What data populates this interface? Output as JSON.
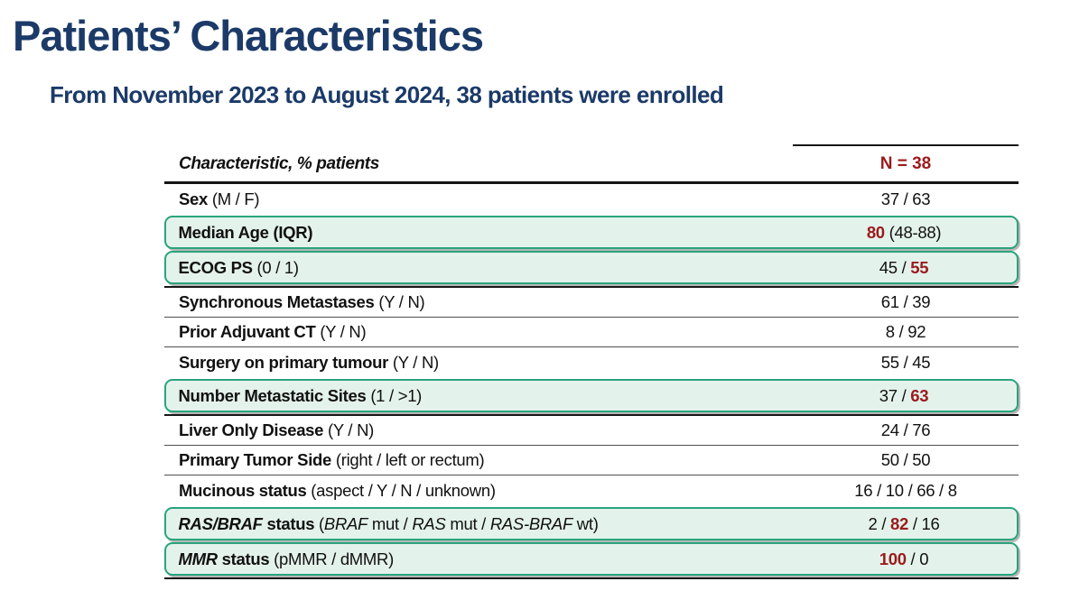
{
  "slide": {
    "title": "Patients’ Characteristics",
    "subtitle": "From November 2023 to August 2024, 38 patients were enrolled",
    "enrolled_patients": 38,
    "enrollment_period": "November 2023 to August 2024"
  },
  "colors": {
    "navy": "#1b3a68",
    "maroon": "#9b1b1b",
    "teal": "#2aa47d",
    "mint": "#e4f2ec",
    "grayline": "#4f4f4f",
    "blackline": "#151515"
  },
  "table": {
    "header": {
      "characteristic": "Characteristic, % patients",
      "n": "N = 38"
    },
    "rows": [
      {
        "highlight": false,
        "sep": "none",
        "label": [
          {
            "t": "Sex",
            "b": 1
          },
          {
            "t": " (M / F)"
          }
        ],
        "value": [
          {
            "t": "37 / 63"
          }
        ]
      },
      {
        "highlight": true,
        "sep": "none",
        "label": [
          {
            "t": "Median Age (IQR)",
            "b": 1
          }
        ],
        "value": [
          {
            "t": "80",
            "em": 1
          },
          {
            "t": " (48-88)"
          }
        ]
      },
      {
        "highlight": true,
        "sep": "black",
        "label": [
          {
            "t": "ECOG PS",
            "b": 1
          },
          {
            "t": " (0 / 1)"
          }
        ],
        "value": [
          {
            "t": "45 / "
          },
          {
            "t": "55",
            "em": 1
          }
        ]
      },
      {
        "highlight": false,
        "sep": "gray",
        "label": [
          {
            "t": "Synchronous Metastases",
            "b": 1
          },
          {
            "t": " (Y / N)"
          }
        ],
        "value": [
          {
            "t": "61 / 39"
          }
        ]
      },
      {
        "highlight": false,
        "sep": "gray",
        "label": [
          {
            "t": "Prior Adjuvant CT",
            "b": 1
          },
          {
            "t": " (Y / N)"
          }
        ],
        "value": [
          {
            "t": "8 / 92"
          }
        ]
      },
      {
        "highlight": false,
        "sep": "none",
        "label": [
          {
            "t": "Surgery on primary tumour",
            "b": 1
          },
          {
            "t": " (Y / N)"
          }
        ],
        "value": [
          {
            "t": "55 / 45"
          }
        ]
      },
      {
        "highlight": true,
        "sep": "black",
        "label": [
          {
            "t": "Number Metastatic Sites",
            "b": 1
          },
          {
            "t": " (1 / >1)"
          }
        ],
        "value": [
          {
            "t": "37 / "
          },
          {
            "t": "63",
            "em": 1
          }
        ]
      },
      {
        "highlight": false,
        "sep": "gray",
        "label": [
          {
            "t": "Liver Only Disease",
            "b": 1
          },
          {
            "t": " (Y / N)"
          }
        ],
        "value": [
          {
            "t": "24 / 76"
          }
        ]
      },
      {
        "highlight": false,
        "sep": "gray",
        "label": [
          {
            "t": "Primary Tumor Side",
            "b": 1
          },
          {
            "t": " (right / left or rectum)"
          }
        ],
        "value": [
          {
            "t": "50 / 50"
          }
        ]
      },
      {
        "highlight": false,
        "sep": "none",
        "label": [
          {
            "t": "Mucinous status",
            "b": 1
          },
          {
            "t": " (aspect / Y / N / unknown)"
          }
        ],
        "value": [
          {
            "t": "16 / 10 / 66 / 8"
          }
        ]
      },
      {
        "highlight": true,
        "sep": "none",
        "label": [
          {
            "t": "RAS/BRAF",
            "b": 1,
            "i": 1
          },
          {
            "t": " status",
            "b": 1
          },
          {
            "t": " ("
          },
          {
            "t": "BRAF",
            "i": 1
          },
          {
            "t": " mut / "
          },
          {
            "t": "RAS",
            "i": 1
          },
          {
            "t": " mut / "
          },
          {
            "t": "RAS-BRAF",
            "i": 1
          },
          {
            "t": " wt)"
          }
        ],
        "value": [
          {
            "t": "2 / "
          },
          {
            "t": "82",
            "em": 1
          },
          {
            "t": " / 16"
          }
        ]
      },
      {
        "highlight": true,
        "sep": "none",
        "label": [
          {
            "t": "MMR",
            "b": 1,
            "i": 1
          },
          {
            "t": " status",
            "b": 1
          },
          {
            "t": " (pMMR / dMMR)"
          }
        ],
        "value": [
          {
            "t": "100",
            "em": 1
          },
          {
            "t": " / 0"
          }
        ]
      }
    ]
  }
}
